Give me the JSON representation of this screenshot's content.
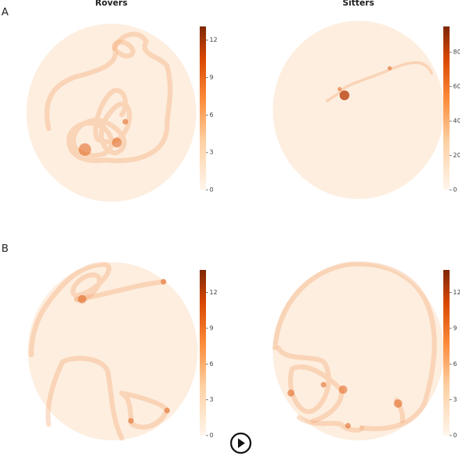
{
  "figure": {
    "column_titles": [
      "Rovers",
      "Sitters"
    ],
    "rows": [
      {
        "label": "A",
        "panels": [
          {
            "colorbar": {
              "lim": [
                0,
                13.1
              ],
              "ticks": [
                0,
                3,
                6,
                9,
                12
              ]
            }
          },
          {
            "colorbar": {
              "lim": [
                0,
                95
              ],
              "ticks": [
                0,
                20,
                40,
                60,
                80
              ]
            }
          }
        ]
      },
      {
        "label": "B",
        "panels": [
          {
            "colorbar": {
              "lim": [
                0,
                13.9
              ],
              "ticks": [
                0,
                3,
                6,
                9,
                12
              ]
            }
          },
          {
            "colorbar": {
              "lim": [
                0,
                13.9
              ],
              "ticks": [
                0,
                3,
                6,
                9,
                12
              ]
            }
          }
        ]
      }
    ]
  }
}
